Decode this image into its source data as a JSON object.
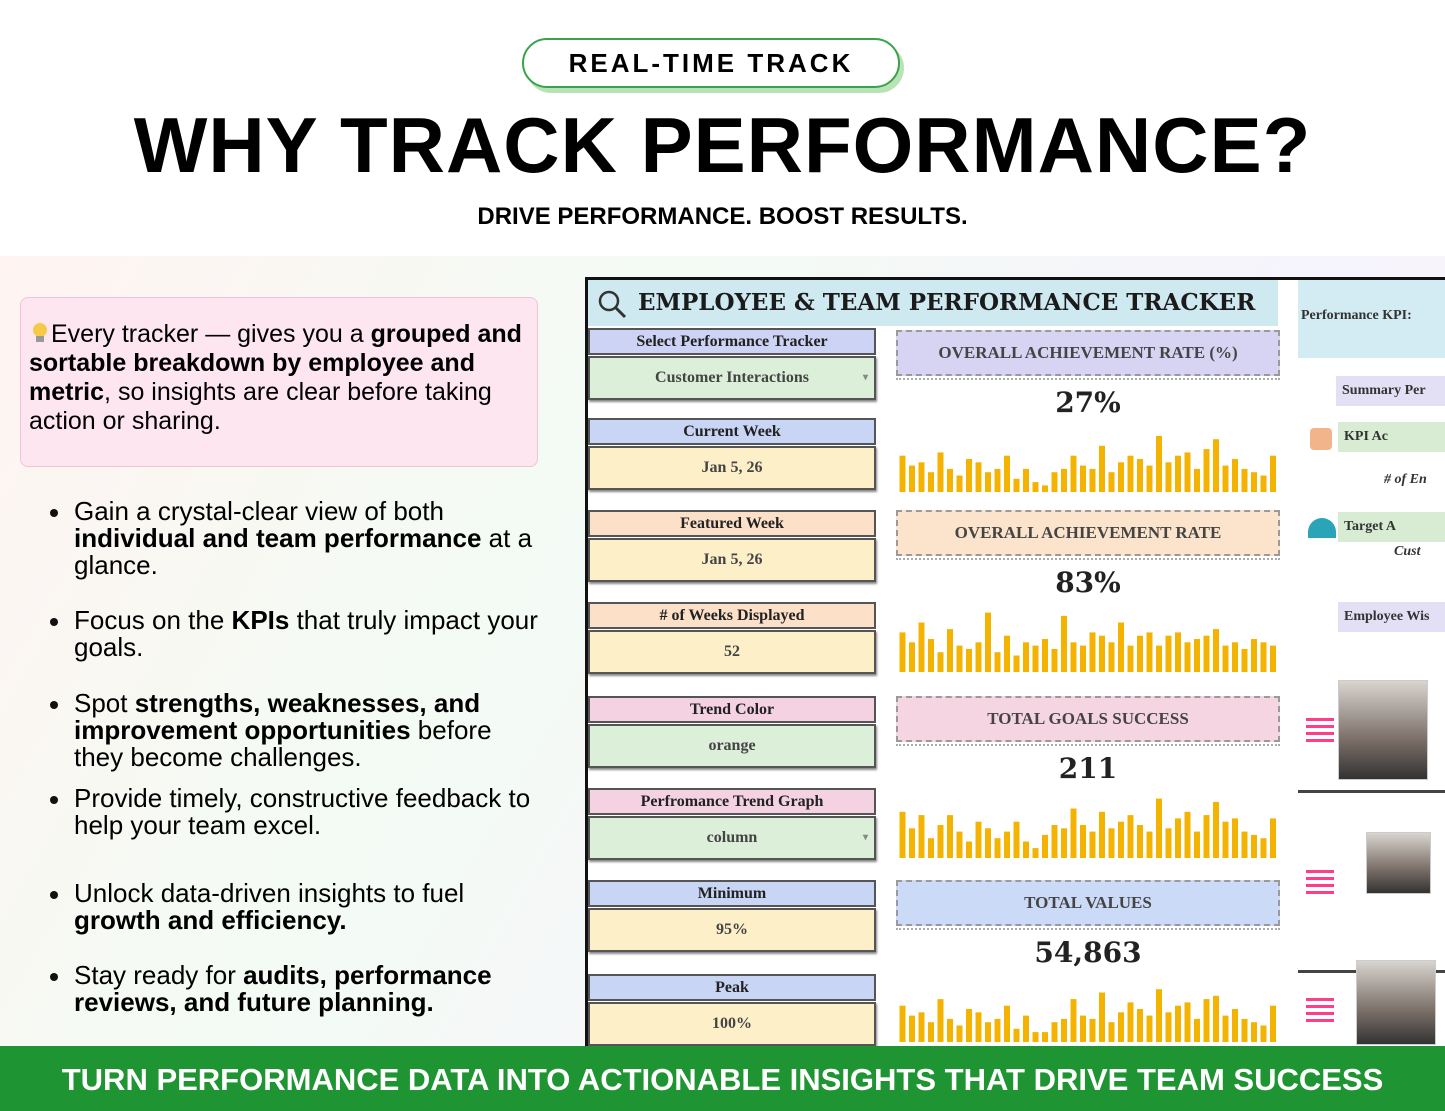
{
  "badge": "REAL-TIME TRACK",
  "title": "WHY TRACK PERFORMANCE?",
  "subtitle": "DRIVE PERFORMANCE. BOOST RESULTS.",
  "callout": [
    {
      "text": "Every tracker — gives you a "
    },
    {
      "text": "grouped and sortable breakdown by employee and metric",
      "bold": true
    },
    {
      "text": ", so insights are clear before taking action or sharing."
    }
  ],
  "bullets": [
    [
      {
        "text": "Gain a crystal-clear view of both "
      },
      {
        "text": "individual and team performance",
        "bold": true
      },
      {
        "text": " at a glance."
      }
    ],
    [
      {
        "text": "Focus on the "
      },
      {
        "text": "KPIs",
        "bold": true
      },
      {
        "text": " that truly impact your goals."
      }
    ],
    [
      {
        "text": "Spot "
      },
      {
        "text": "strengths, weaknesses, and improvement opportunities",
        "bold": true
      },
      {
        "text": " before they become challenges."
      }
    ],
    [
      {
        "text": "Provide timely, constructive feedback to help your team excel."
      }
    ],
    [
      {
        "text": "Unlock data-driven insights to fuel "
      },
      {
        "text": "growth and efficiency.",
        "bold": true
      }
    ],
    [
      {
        "text": "Stay ready for "
      },
      {
        "text": "audits, performance reviews, and future planning.",
        "bold": true
      }
    ]
  ],
  "dashboard": {
    "title": "EMPLOYEE & TEAM PERFORMANCE TRACKER",
    "controls": [
      {
        "label": "Select Performance Tracker",
        "value": "Customer Interactions",
        "label_color": "#cdd3f4",
        "value_color": "#dcefd9",
        "dropdown": true
      },
      {
        "label": "Current Week",
        "value": "Jan 5, 26",
        "label_color": "#c9d5f5",
        "value_color": "#fdf0c8"
      },
      {
        "label": "Featured Week",
        "value": "Jan 5, 26",
        "label_color": "#fde0c8",
        "value_color": "#fdf0c8"
      },
      {
        "label": "# of Weeks Displayed",
        "value": "52",
        "label_color": "#fde0c8",
        "value_color": "#fdf0c8"
      },
      {
        "label": "Trend Color",
        "value": "orange",
        "label_color": "#f4d2e2",
        "value_color": "#dcefd9"
      },
      {
        "label": "Perfromance Trend Graph",
        "value": "column",
        "label_color": "#f4d2e2",
        "value_color": "#dcefd9",
        "dropdown": true
      },
      {
        "label": "Minimum",
        "value": "95%",
        "label_color": "#c9d5f5",
        "value_color": "#fdf0c8"
      },
      {
        "label": "Peak",
        "value": "100%",
        "label_color": "#c9d5f5",
        "value_color": "#fdf0c8"
      }
    ],
    "bar_color": "#f5b301",
    "ylim": [
      0,
      100
    ],
    "cards": [
      {
        "label": "OVERALL ACHIEVEMENT RATE (%)",
        "value": "27%",
        "head_color": "#d6d3f3",
        "bars": [
          55,
          40,
          45,
          30,
          60,
          35,
          25,
          50,
          45,
          30,
          35,
          55,
          20,
          35,
          15,
          10,
          30,
          35,
          55,
          40,
          35,
          70,
          30,
          45,
          55,
          50,
          40,
          85,
          45,
          55,
          60,
          35,
          65,
          80,
          40,
          50,
          35,
          30,
          25,
          55
        ]
      },
      {
        "label": "OVERALL ACHIEVEMENT RATE",
        "value": "83%",
        "head_color": "#fbe3cc",
        "bars": [
          60,
          45,
          75,
          50,
          30,
          65,
          40,
          35,
          45,
          90,
          30,
          55,
          25,
          45,
          40,
          50,
          35,
          85,
          45,
          40,
          60,
          55,
          45,
          75,
          40,
          55,
          60,
          40,
          55,
          60,
          45,
          50,
          55,
          65,
          40,
          45,
          35,
          50,
          45,
          40
        ]
      },
      {
        "label": "TOTAL GOALS SUCCESS",
        "value": "211",
        "head_color": "#f6d5e3",
        "bars": [
          70,
          45,
          65,
          30,
          50,
          65,
          40,
          25,
          55,
          45,
          30,
          40,
          55,
          25,
          15,
          35,
          50,
          45,
          75,
          50,
          40,
          70,
          45,
          55,
          65,
          50,
          40,
          90,
          45,
          60,
          70,
          40,
          65,
          85,
          55,
          60,
          40,
          35,
          30,
          60
        ]
      },
      {
        "label": "TOTAL VALUES",
        "value": "54,863",
        "head_color": "#cbdaf6",
        "bars": [
          55,
          40,
          45,
          30,
          65,
          35,
          25,
          50,
          45,
          30,
          35,
          55,
          20,
          40,
          15,
          15,
          30,
          35,
          65,
          40,
          35,
          75,
          30,
          45,
          60,
          50,
          40,
          80,
          45,
          55,
          60,
          35,
          65,
          70,
          40,
          50,
          35,
          30,
          25,
          55
        ]
      }
    ],
    "side": {
      "header": "Performance KPI:",
      "items": [
        "Summary Per",
        "KPI Ac",
        "# of En",
        "Target A",
        "Cust",
        "Employee Wis"
      ]
    }
  },
  "footer": "TURN PERFORMANCE DATA INTO ACTIONABLE INSIGHTS THAT DRIVE TEAM SUCCESS"
}
